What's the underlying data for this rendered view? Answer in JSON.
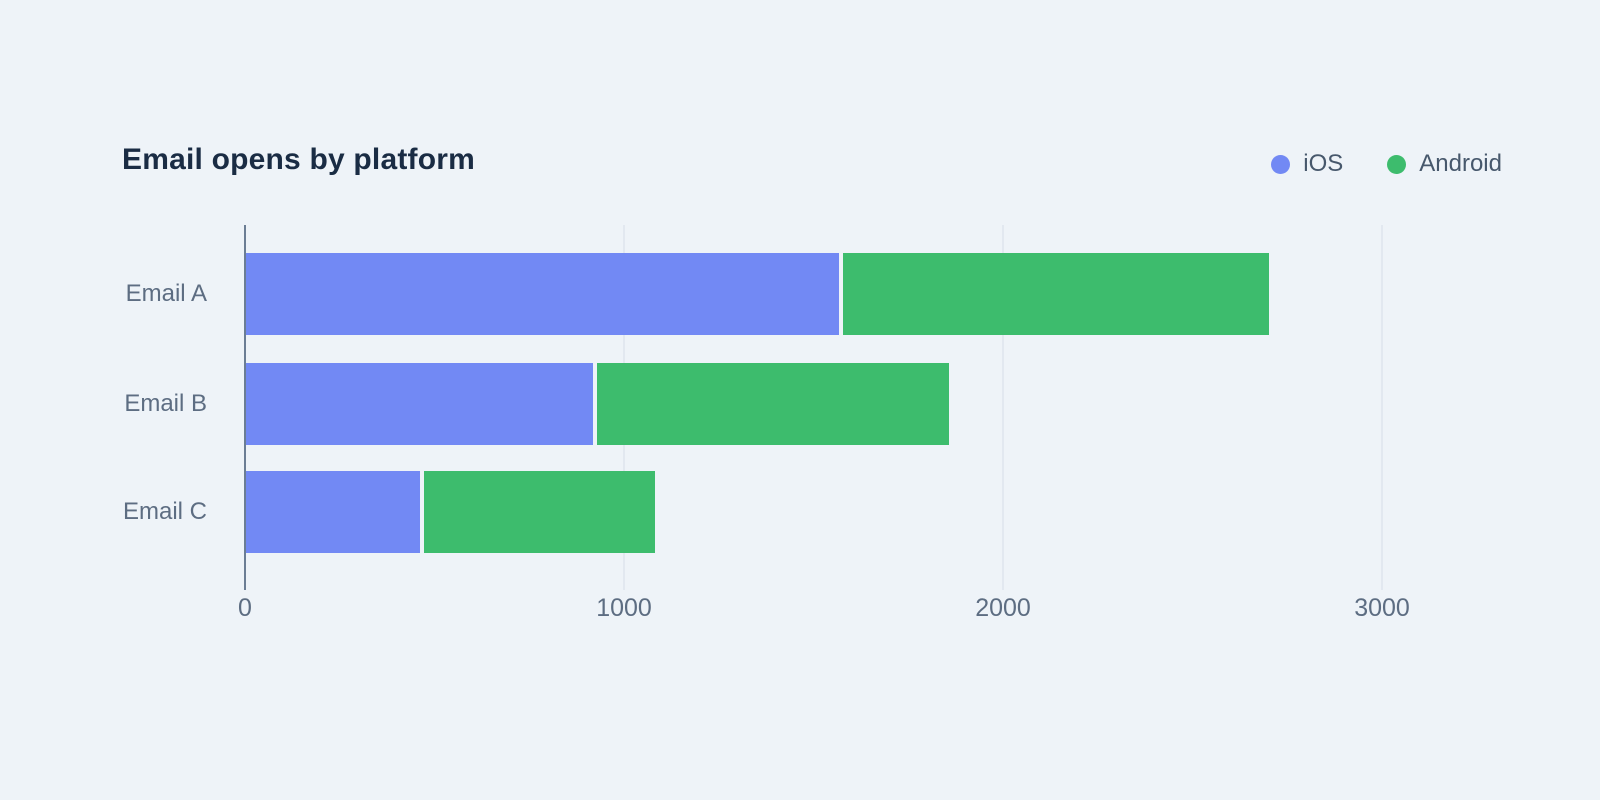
{
  "chart_data": {
    "type": "bar",
    "orientation": "horizontal",
    "stacked": true,
    "title": "Email opens by platform",
    "categories": [
      "Email A",
      "Email B",
      "Email C"
    ],
    "series": [
      {
        "name": "iOS",
        "color": "#7289f4",
        "values": [
          1575,
          925,
          470
        ]
      },
      {
        "name": "Android",
        "color": "#3dbc6d",
        "values": [
          1125,
          930,
          610
        ]
      }
    ],
    "x_ticks": [
      0,
      1000,
      2000,
      3000
    ],
    "x_tick_labels": [
      "0",
      "1000",
      "2000",
      "3000"
    ],
    "xlim": [
      0,
      3200
    ],
    "xlabel": "",
    "ylabel": "",
    "grid": "vertical",
    "legend_position": "top-right",
    "background_color": "#eef3f8"
  },
  "legend": {
    "items": [
      {
        "label": "iOS",
        "color": "#7289f4"
      },
      {
        "label": "Android",
        "color": "#3dbc6d"
      }
    ]
  }
}
